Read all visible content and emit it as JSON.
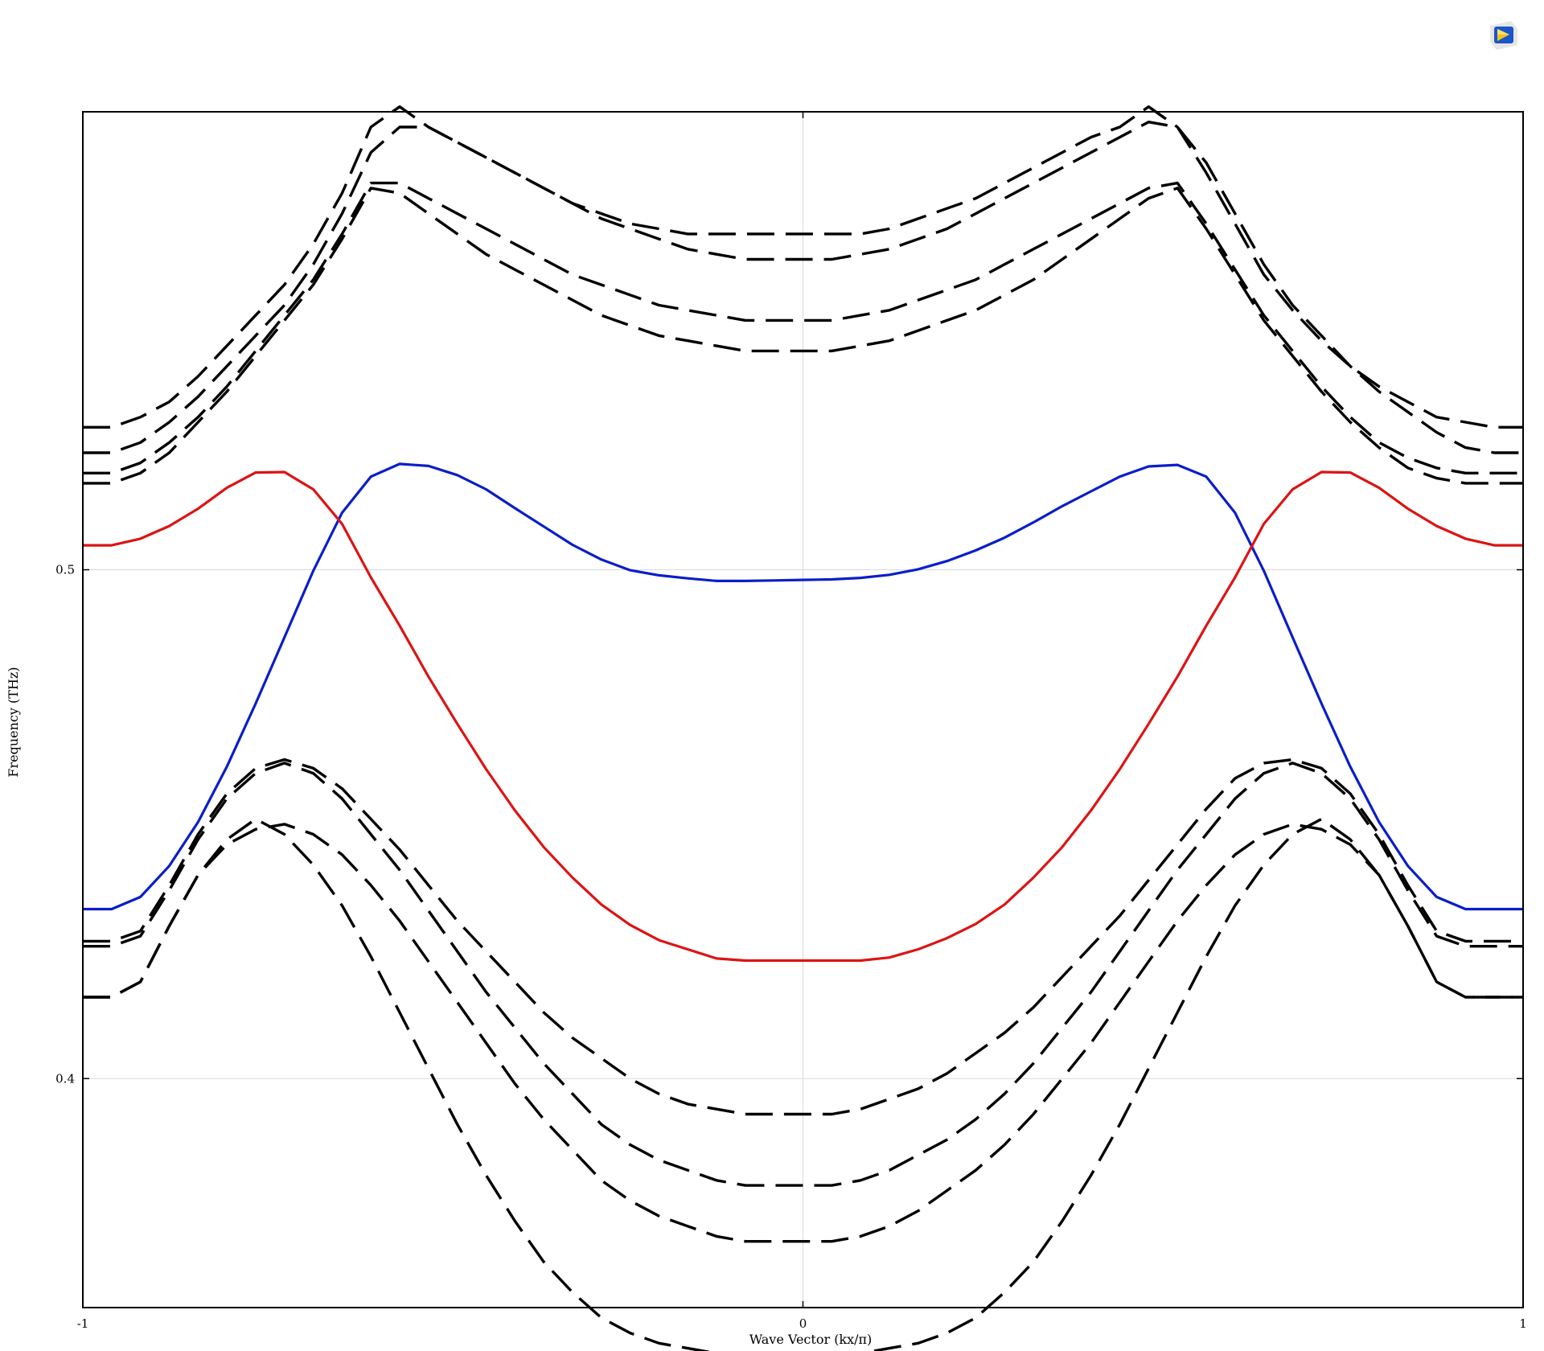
{
  "app": {
    "logo_icon": "comsol-logo-icon"
  },
  "chart_data": {
    "type": "line",
    "title": "",
    "xlabel": "Wave Vector (kx/π)",
    "ylabel": "Frequency  (THz)",
    "xlim": [
      -1,
      1
    ],
    "ylim": [
      0.355,
      0.59
    ],
    "x_ticks": [
      {
        "value": -1,
        "label": "-1"
      },
      {
        "value": 0,
        "label": "0"
      },
      {
        "value": 1,
        "label": "1"
      }
    ],
    "y_ticks": [
      {
        "value": 0.4,
        "label": "0.4"
      },
      {
        "value": 0.5,
        "label": "0.5"
      }
    ],
    "grid": true,
    "legend": "none",
    "colors": {
      "blue_band": "#0a1ec8",
      "red_band": "#dc1414",
      "dashed_band": "#000000",
      "grid": "#d9d9d9"
    },
    "x": [
      -0.96,
      -0.92,
      -0.88,
      -0.84,
      -0.8,
      -0.76,
      -0.72,
      -0.68,
      -0.64,
      -0.6,
      -0.56,
      -0.52,
      -0.48,
      -0.44,
      -0.4,
      -0.36,
      -0.32,
      -0.28,
      -0.24,
      -0.2,
      -0.16,
      -0.12,
      -0.08,
      -0.04,
      0.0,
      0.04,
      0.08,
      0.12,
      0.16,
      0.2,
      0.24,
      0.28,
      0.32,
      0.36,
      0.4,
      0.44,
      0.48,
      0.52,
      0.56,
      0.6,
      0.64,
      0.68,
      0.72,
      0.76,
      0.8,
      0.84,
      0.88,
      0.92,
      0.96
    ],
    "series": [
      {
        "style": "solid",
        "color": "#0a1ec8",
        "values": [
          0.4333,
          0.4357,
          0.4418,
          0.4504,
          0.4613,
          0.4737,
          0.4867,
          0.4998,
          0.5112,
          0.5183,
          0.5208,
          0.5204,
          0.5186,
          0.5158,
          0.5121,
          0.5085,
          0.5049,
          0.502,
          0.4999,
          0.4989,
          0.4983,
          0.4978,
          0.4978,
          0.4979,
          0.498,
          0.4981,
          0.4984,
          0.499,
          0.5001,
          0.5017,
          0.5038,
          0.5063,
          0.5093,
          0.5125,
          0.5154,
          0.5183,
          0.5203,
          0.5206,
          0.5183,
          0.5112,
          0.4998,
          0.4867,
          0.4737,
          0.4613,
          0.4504,
          0.4418,
          0.4357,
          0.4333,
          0.4333
        ]
      },
      {
        "style": "solid",
        "color": "#dc1414",
        "values": [
          0.5048,
          0.5061,
          0.5086,
          0.512,
          0.5161,
          0.5191,
          0.5192,
          0.5158,
          0.509,
          0.4985,
          0.489,
          0.479,
          0.4697,
          0.4608,
          0.4527,
          0.4455,
          0.4395,
          0.4342,
          0.4302,
          0.4272,
          0.4254,
          0.4236,
          0.4232,
          0.4232,
          0.4232,
          0.4232,
          0.4232,
          0.4238,
          0.4254,
          0.4276,
          0.4304,
          0.4342,
          0.4395,
          0.4455,
          0.4527,
          0.4608,
          0.4697,
          0.479,
          0.489,
          0.4985,
          0.509,
          0.5158,
          0.5192,
          0.5191,
          0.5161,
          0.512,
          0.5086,
          0.5061,
          0.5048
        ]
      },
      {
        "style": "dashed",
        "color": "#000000",
        "values": [
          0.528,
          0.53,
          0.533,
          0.538,
          0.544,
          0.55,
          0.556,
          0.564,
          0.574,
          0.587,
          0.591,
          0.587,
          0.584,
          0.581,
          0.578,
          0.575,
          0.572,
          0.57,
          0.568,
          0.567,
          0.566,
          0.566,
          0.566,
          0.566,
          0.566,
          0.566,
          0.566,
          0.567,
          0.569,
          0.571,
          0.573,
          0.576,
          0.579,
          0.582,
          0.585,
          0.587,
          0.591,
          0.587,
          0.578,
          0.568,
          0.558,
          0.551,
          0.545,
          0.54,
          0.536,
          0.533,
          0.53,
          0.529,
          0.528
        ]
      },
      {
        "style": "dashed",
        "color": "#000000",
        "values": [
          0.523,
          0.525,
          0.529,
          0.534,
          0.54,
          0.546,
          0.552,
          0.56,
          0.57,
          0.582,
          0.587,
          0.587,
          0.584,
          0.581,
          0.578,
          0.575,
          0.572,
          0.569,
          0.567,
          0.565,
          0.563,
          0.562,
          0.561,
          0.561,
          0.561,
          0.561,
          0.562,
          0.563,
          0.565,
          0.567,
          0.57,
          0.573,
          0.576,
          0.579,
          0.582,
          0.585,
          0.588,
          0.587,
          0.58,
          0.57,
          0.56,
          0.552,
          0.546,
          0.54,
          0.535,
          0.531,
          0.527,
          0.524,
          0.523
        ]
      },
      {
        "style": "dashed",
        "color": "#000000",
        "values": [
          0.519,
          0.521,
          0.525,
          0.53,
          0.536,
          0.543,
          0.55,
          0.557,
          0.566,
          0.576,
          0.576,
          0.573,
          0.57,
          0.567,
          0.564,
          0.561,
          0.558,
          0.556,
          0.554,
          0.552,
          0.551,
          0.55,
          0.549,
          0.549,
          0.549,
          0.549,
          0.55,
          0.551,
          0.553,
          0.555,
          0.557,
          0.56,
          0.563,
          0.566,
          0.569,
          0.572,
          0.575,
          0.576,
          0.568,
          0.559,
          0.55,
          0.543,
          0.536,
          0.53,
          0.525,
          0.522,
          0.52,
          0.519,
          0.519
        ]
      },
      {
        "style": "dashed",
        "color": "#000000",
        "values": [
          0.517,
          0.519,
          0.523,
          0.529,
          0.535,
          0.542,
          0.549,
          0.556,
          0.565,
          0.575,
          0.574,
          0.57,
          0.566,
          0.562,
          0.559,
          0.556,
          0.553,
          0.55,
          0.548,
          0.546,
          0.545,
          0.544,
          0.543,
          0.543,
          0.543,
          0.543,
          0.544,
          0.545,
          0.547,
          0.549,
          0.551,
          0.554,
          0.557,
          0.561,
          0.565,
          0.569,
          0.573,
          0.575,
          0.567,
          0.558,
          0.549,
          0.542,
          0.535,
          0.529,
          0.524,
          0.52,
          0.518,
          0.517,
          0.517
        ]
      },
      {
        "style": "dashed",
        "color": "#000000",
        "values": [
          0.427,
          0.429,
          0.438,
          0.448,
          0.456,
          0.461,
          0.4627,
          0.461,
          0.457,
          0.451,
          0.445,
          0.438,
          0.431,
          0.425,
          0.419,
          0.413,
          0.408,
          0.404,
          0.4,
          0.397,
          0.395,
          0.394,
          0.393,
          0.393,
          0.393,
          0.393,
          0.394,
          0.396,
          0.398,
          0.401,
          0.405,
          0.409,
          0.414,
          0.42,
          0.426,
          0.432,
          0.439,
          0.446,
          0.453,
          0.459,
          0.462,
          0.4627,
          0.461,
          0.456,
          0.448,
          0.438,
          0.429,
          0.427,
          0.427
        ]
      },
      {
        "style": "dashed",
        "color": "#000000",
        "values": [
          0.426,
          0.428,
          0.437,
          0.447,
          0.455,
          0.46,
          0.462,
          0.46,
          0.455,
          0.448,
          0.441,
          0.433,
          0.425,
          0.417,
          0.41,
          0.403,
          0.397,
          0.391,
          0.387,
          0.384,
          0.382,
          0.38,
          0.379,
          0.379,
          0.379,
          0.379,
          0.38,
          0.382,
          0.385,
          0.388,
          0.392,
          0.397,
          0.403,
          0.41,
          0.417,
          0.425,
          0.433,
          0.441,
          0.448,
          0.455,
          0.46,
          0.462,
          0.46,
          0.455,
          0.447,
          0.437,
          0.428,
          0.426,
          0.426
        ]
      },
      {
        "style": "dashed",
        "color": "#000000",
        "values": [
          0.416,
          0.419,
          0.43,
          0.44,
          0.446,
          0.449,
          0.45,
          0.448,
          0.444,
          0.438,
          0.431,
          0.423,
          0.415,
          0.407,
          0.399,
          0.392,
          0.386,
          0.38,
          0.376,
          0.373,
          0.371,
          0.369,
          0.368,
          0.368,
          0.368,
          0.368,
          0.369,
          0.371,
          0.374,
          0.378,
          0.382,
          0.387,
          0.393,
          0.4,
          0.407,
          0.415,
          0.423,
          0.431,
          0.438,
          0.444,
          0.448,
          0.45,
          0.449,
          0.446,
          0.44,
          0.43,
          0.419,
          0.416,
          0.416
        ]
      },
      {
        "style": "dashed",
        "color": "#000000",
        "values": [
          0.416,
          0.419,
          0.43,
          0.44,
          0.447,
          0.451,
          0.448,
          0.442,
          0.434,
          0.424,
          0.413,
          0.402,
          0.391,
          0.381,
          0.372,
          0.364,
          0.358,
          0.353,
          0.35,
          0.348,
          0.347,
          0.346,
          0.346,
          0.346,
          0.346,
          0.346,
          0.346,
          0.347,
          0.348,
          0.35,
          0.353,
          0.358,
          0.364,
          0.372,
          0.381,
          0.391,
          0.402,
          0.413,
          0.424,
          0.434,
          0.442,
          0.448,
          0.451,
          0.447,
          0.44,
          0.43,
          0.419,
          0.416,
          0.416
        ]
      }
    ]
  }
}
